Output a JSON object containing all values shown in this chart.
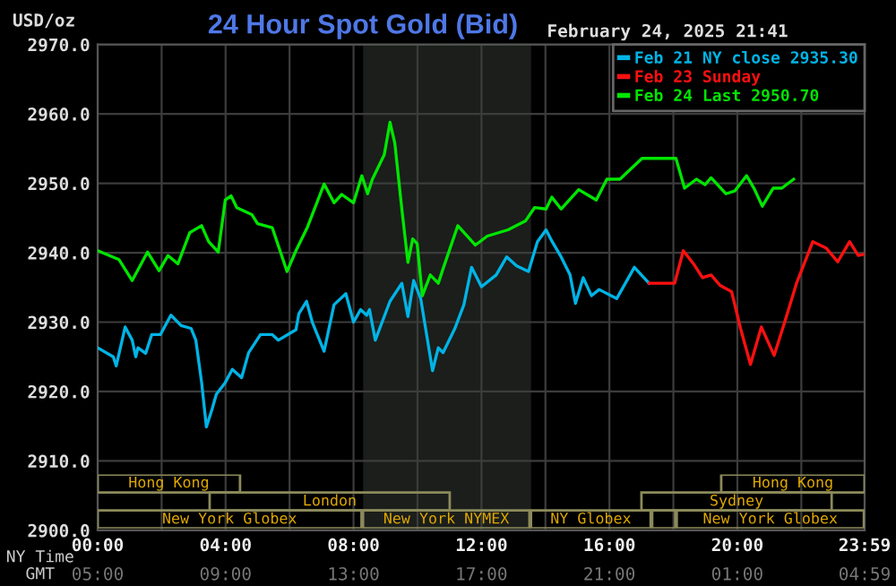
{
  "chart_data": [
    {
      "type": "line",
      "title": "24 Hour Spot Gold (Bid)",
      "subtitle": "February 24, 2025 21:41",
      "ylabel": "USD/oz",
      "xlabel": "NY Time",
      "x2label": "GMT",
      "xlim": [
        0,
        23.98
      ],
      "ylim": [
        2900,
        2970
      ],
      "xticks": [
        {
          "value": 0,
          "label": "00:00"
        },
        {
          "value": 2,
          "label": null
        },
        {
          "value": 4,
          "label": "04:00"
        },
        {
          "value": 6,
          "label": null
        },
        {
          "value": 8,
          "label": "08:00"
        },
        {
          "value": 10,
          "label": null
        },
        {
          "value": 12,
          "label": "12:00"
        },
        {
          "value": 14,
          "label": null
        },
        {
          "value": 16,
          "label": "16:00"
        },
        {
          "value": 18,
          "label": null
        },
        {
          "value": 20,
          "label": "20:00"
        },
        {
          "value": 22,
          "label": null
        },
        {
          "value": 23.98,
          "label": "23:59"
        }
      ],
      "x2lim": [
        "2025-02-24T05:00",
        "2025-02-25T04:59"
      ],
      "x2ticks": [
        {
          "value": "2025-02-24T05:00",
          "label": "05:00"
        },
        {
          "value": "2025-02-24T09:00",
          "label": "09:00"
        },
        {
          "value": "2025-02-24T13:00",
          "label": "13:00"
        },
        {
          "value": "2025-02-24T17:00",
          "label": "17:00"
        },
        {
          "value": "2025-02-24T21:00",
          "label": "21:00"
        },
        {
          "value": "2025-02-25T01:00",
          "label": "01:00"
        },
        {
          "value": "2025-02-25T04:59",
          "label": "04:59"
        }
      ],
      "yticks": [
        {
          "value": 2900,
          "label": "2900.0"
        },
        {
          "value": 2910,
          "label": "2910.0"
        },
        {
          "value": 2920,
          "label": "2920.0"
        },
        {
          "value": 2930,
          "label": "2930.0"
        },
        {
          "value": 2940,
          "label": "2940.0"
        },
        {
          "value": 2950,
          "label": "2950.0"
        },
        {
          "value": 2960,
          "label": "2960.0"
        },
        {
          "value": 2970,
          "label": "2970.0"
        }
      ],
      "grid": true,
      "legend": "top right",
      "marker": "none",
      "line_style": "solid",
      "bands": [
        {
          "axis": "x",
          "from": 8.3,
          "to": 13.55,
          "color": "#1b1e1b"
        }
      ],
      "series": [
        {
          "name": "Feb 21 NY close 2935.30",
          "color": "#00b4e6",
          "x": [
            0,
            0.49,
            0.58,
            0.86,
            1.08,
            1.19,
            1.26,
            1.5,
            1.69,
            1.96,
            2.29,
            2.61,
            2.92,
            3.07,
            3.25,
            3.4,
            3.58,
            3.71,
            3.99,
            4.21,
            4.5,
            4.72,
            5.09,
            5.46,
            5.65,
            6.2,
            6.29,
            6.53,
            6.71,
            7.08,
            7.39,
            7.76,
            8.0,
            8.22,
            8.41,
            8.5,
            8.68,
            9.14,
            9.51,
            9.7,
            9.88,
            10.1,
            10.47,
            10.65,
            10.8,
            11.17,
            11.45,
            11.69,
            12.0,
            12.46,
            12.79,
            13.1,
            13.47,
            13.75,
            14.02,
            14.21,
            14.49,
            14.77,
            14.94,
            15.18,
            15.44,
            15.68,
            16.23,
            16.78,
            17.24
          ],
          "values": [
            2926.3,
            2925.0,
            2923.7,
            2929.3,
            2927.4,
            2925.0,
            2926.3,
            2925.5,
            2928.2,
            2928.2,
            2931.0,
            2929.5,
            2929.1,
            2927.4,
            2921.3,
            2914.9,
            2917.5,
            2919.6,
            2921.3,
            2923.2,
            2922.0,
            2925.6,
            2928.2,
            2928.2,
            2927.4,
            2928.9,
            2931.2,
            2933.0,
            2930.0,
            2925.8,
            2932.5,
            2934.1,
            2930.0,
            2931.8,
            2931.0,
            2931.8,
            2927.4,
            2933.0,
            2935.6,
            2930.8,
            2936.0,
            2933.4,
            2923.0,
            2926.3,
            2925.6,
            2929.1,
            2932.5,
            2937.9,
            2935.1,
            2936.8,
            2939.4,
            2938.1,
            2937.3,
            2941.6,
            2943.3,
            2941.6,
            2939.4,
            2936.8,
            2932.7,
            2936.4,
            2933.8,
            2934.7,
            2933.4,
            2937.9,
            2935.6
          ]
        },
        {
          "name": "Feb 23 Sunday",
          "color": "#ff1010",
          "x": [
            17.24,
            18.04,
            18.31,
            18.63,
            18.91,
            19.18,
            19.46,
            19.82,
            20.1,
            20.41,
            20.75,
            21.15,
            21.48,
            21.85,
            22.36,
            22.77,
            23.14,
            23.51,
            23.78,
            23.98
          ],
          "values": [
            2935.6,
            2935.6,
            2940.3,
            2938.4,
            2936.4,
            2936.8,
            2935.3,
            2934.4,
            2929.1,
            2923.9,
            2929.3,
            2925.2,
            2930.0,
            2935.6,
            2941.6,
            2940.7,
            2938.7,
            2941.6,
            2939.6,
            2939.8
          ]
        },
        {
          "name": "Feb 24 Last 2950.70",
          "color": "#00e600",
          "x": [
            0,
            0.67,
            1.08,
            1.56,
            1.92,
            2.2,
            2.51,
            2.88,
            3.25,
            3.47,
            3.77,
            3.99,
            4.17,
            4.35,
            4.82,
            5.0,
            5.46,
            5.92,
            6.2,
            6.56,
            7.08,
            7.39,
            7.63,
            8.0,
            8.26,
            8.44,
            8.59,
            8.96,
            9.14,
            9.29,
            9.51,
            9.7,
            9.85,
            9.99,
            10.15,
            10.4,
            10.65,
            10.8,
            11.26,
            11.81,
            12.18,
            12.83,
            13.38,
            13.66,
            14.02,
            14.2,
            14.49,
            15.04,
            15.59,
            15.92,
            16.33,
            16.7,
            17.02,
            18.08,
            18.35,
            18.72,
            18.99,
            19.18,
            19.64,
            19.92,
            20.29,
            20.52,
            20.78,
            21.12,
            21.39,
            21.76
          ],
          "values": [
            2940.3,
            2939.0,
            2936.0,
            2940.1,
            2937.4,
            2939.6,
            2938.4,
            2942.9,
            2943.9,
            2941.6,
            2940.1,
            2947.6,
            2948.2,
            2946.5,
            2945.5,
            2944.2,
            2943.6,
            2937.3,
            2940.3,
            2943.7,
            2949.9,
            2947.2,
            2948.4,
            2947.2,
            2951.1,
            2948.5,
            2950.6,
            2954.1,
            2958.8,
            2955.8,
            2946.3,
            2938.6,
            2942.0,
            2941.3,
            2933.8,
            2936.8,
            2935.6,
            2937.7,
            2943.9,
            2941.1,
            2942.4,
            2943.3,
            2944.6,
            2946.5,
            2946.3,
            2948.0,
            2946.3,
            2949.1,
            2947.6,
            2950.6,
            2950.6,
            2952.2,
            2953.6,
            2953.6,
            2949.3,
            2950.6,
            2949.8,
            2950.8,
            2948.5,
            2948.9,
            2951.1,
            2949.3,
            2946.7,
            2949.3,
            2949.3,
            2950.6
          ]
        }
      ]
    },
    {
      "type": "other",
      "annotations": [
        "Hong Kong",
        "Hong Kong",
        "London",
        "Sydney",
        "New York Globex",
        "New York NYMEX",
        "NY Globex",
        "New York Globex"
      ]
    }
  ]
}
